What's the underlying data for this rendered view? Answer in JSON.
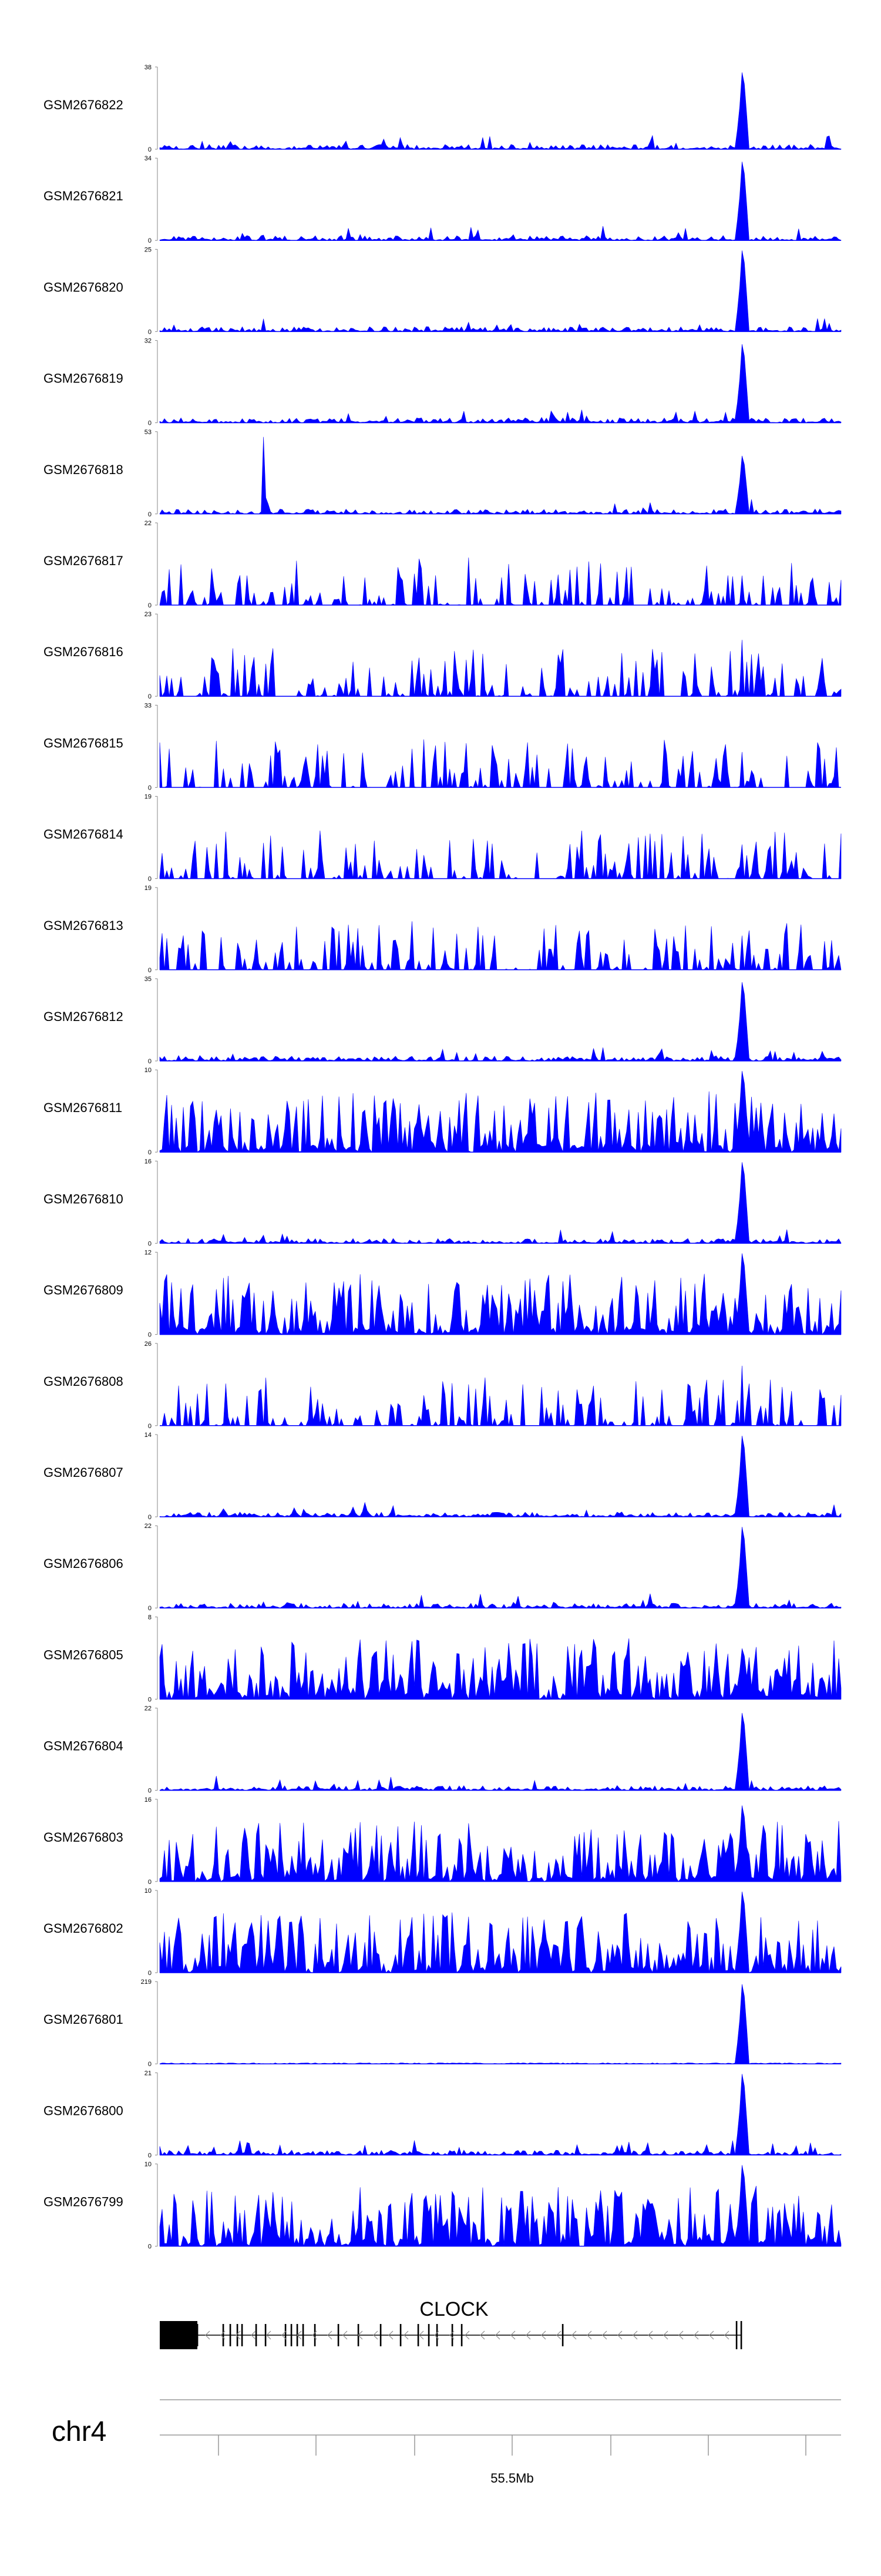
{
  "chart_data": {
    "type": "area",
    "description_units": "ChIP-seq / ATAC-seq style coverage tracks along the genome; y in read coverage",
    "color": "#0000ff",
    "tracks": [
      {
        "name": "GSM2676822",
        "ymax": 38,
        "ymin": 0,
        "pattern": "peak",
        "peak_height": 36
      },
      {
        "name": "GSM2676821",
        "ymax": 34,
        "ymin": 0,
        "pattern": "peak",
        "peak_height": 33
      },
      {
        "name": "GSM2676820",
        "ymax": 25,
        "ymin": 0,
        "pattern": "peak",
        "peak_height": 25
      },
      {
        "name": "GSM2676819",
        "ymax": 32,
        "ymin": 0,
        "pattern": "peak",
        "peak_height": 31
      },
      {
        "name": "GSM2676818",
        "ymax": 53,
        "ymin": 0,
        "pattern": "peak2",
        "peak_height": 38
      },
      {
        "name": "GSM2676817",
        "ymax": 22,
        "ymin": 0,
        "pattern": "sparse",
        "peak_height": 10
      },
      {
        "name": "GSM2676816",
        "ymax": 23,
        "ymin": 0,
        "pattern": "sparse",
        "peak_height": 20
      },
      {
        "name": "GSM2676815",
        "ymax": 33,
        "ymin": 0,
        "pattern": "sparse",
        "peak_height": 18
      },
      {
        "name": "GSM2676814",
        "ymax": 19,
        "ymin": 0,
        "pattern": "sparse",
        "peak_height": 10
      },
      {
        "name": "GSM2676813",
        "ymax": 19,
        "ymin": 0,
        "pattern": "sparse",
        "peak_height": 10
      },
      {
        "name": "GSM2676812",
        "ymax": 35,
        "ymin": 0,
        "pattern": "peak",
        "peak_height": 34
      },
      {
        "name": "GSM2676811",
        "ymax": 10,
        "ymin": 0,
        "pattern": "dense",
        "peak_height": 10
      },
      {
        "name": "GSM2676810",
        "ymax": 16,
        "ymin": 0,
        "pattern": "peak",
        "peak_height": 16
      },
      {
        "name": "GSM2676809",
        "ymax": 12,
        "ymin": 0,
        "pattern": "dense",
        "peak_height": 12
      },
      {
        "name": "GSM2676808",
        "ymax": 26,
        "ymin": 0,
        "pattern": "sparse",
        "peak_height": 24
      },
      {
        "name": "GSM2676807",
        "ymax": 14,
        "ymin": 0,
        "pattern": "peak",
        "peak_height": 14
      },
      {
        "name": "GSM2676806",
        "ymax": 22,
        "ymin": 0,
        "pattern": "peak",
        "peak_height": 22
      },
      {
        "name": "GSM2676805",
        "ymax": 8,
        "ymin": 0,
        "pattern": "dense",
        "peak_height": 5
      },
      {
        "name": "GSM2676804",
        "ymax": 22,
        "ymin": 0,
        "pattern": "peak",
        "peak_height": 21
      },
      {
        "name": "GSM2676803",
        "ymax": 16,
        "ymin": 0,
        "pattern": "dense",
        "peak_height": 15
      },
      {
        "name": "GSM2676802",
        "ymax": 10,
        "ymin": 0,
        "pattern": "dense",
        "peak_height": 10
      },
      {
        "name": "GSM2676801",
        "ymax": 219,
        "ymin": 0,
        "pattern": "spike",
        "peak_height": 215
      },
      {
        "name": "GSM2676800",
        "ymax": 21,
        "ymin": 0,
        "pattern": "peak",
        "peak_height": 21
      },
      {
        "name": "GSM2676799",
        "ymax": 10,
        "ymin": 0,
        "pattern": "dense",
        "peak_height": 10
      }
    ],
    "gene": {
      "name": "CLOCK",
      "strand": "-"
    },
    "chromosome": "chr4",
    "axis_ticks": [
      {
        "label": "",
        "major": false
      },
      {
        "label": "",
        "major": false
      },
      {
        "label": "",
        "major": false
      },
      {
        "label": "55.5Mb",
        "major": true
      },
      {
        "label": "",
        "major": false
      },
      {
        "label": "",
        "major": false
      },
      {
        "label": "",
        "major": false
      }
    ]
  }
}
